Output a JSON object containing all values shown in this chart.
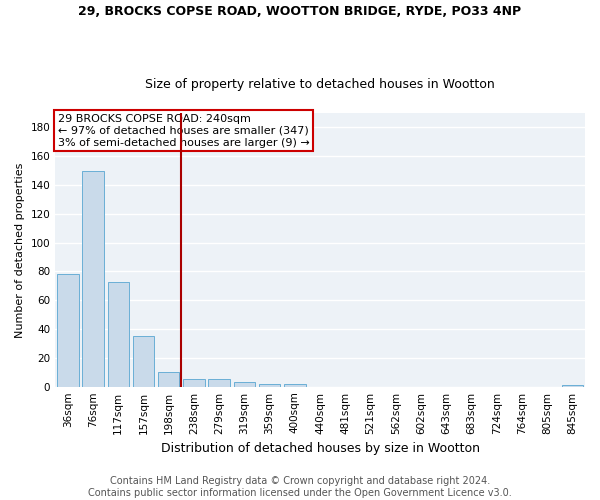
{
  "title1": "29, BROCKS COPSE ROAD, WOOTTON BRIDGE, RYDE, PO33 4NP",
  "title2": "Size of property relative to detached houses in Wootton",
  "xlabel": "Distribution of detached houses by size in Wootton",
  "ylabel": "Number of detached properties",
  "footer1": "Contains HM Land Registry data © Crown copyright and database right 2024.",
  "footer2": "Contains public sector information licensed under the Open Government Licence v3.0.",
  "annotation_line1": "29 BROCKS COPSE ROAD: 240sqm",
  "annotation_line2": "← 97% of detached houses are smaller (347)",
  "annotation_line3": "3% of semi-detached houses are larger (9) →",
  "bar_color": "#c9daea",
  "bar_edge_color": "#6aafd6",
  "vline_color": "#aa0000",
  "annotation_box_color": "#cc0000",
  "background_color": "#edf2f7",
  "grid_color": "#ffffff",
  "categories": [
    "36sqm",
    "76sqm",
    "117sqm",
    "157sqm",
    "198sqm",
    "238sqm",
    "279sqm",
    "319sqm",
    "359sqm",
    "400sqm",
    "440sqm",
    "481sqm",
    "521sqm",
    "562sqm",
    "602sqm",
    "643sqm",
    "683sqm",
    "724sqm",
    "764sqm",
    "805sqm",
    "845sqm"
  ],
  "values": [
    78,
    150,
    73,
    35,
    10,
    5,
    5,
    3,
    2,
    2,
    0,
    0,
    0,
    0,
    0,
    0,
    0,
    0,
    0,
    0,
    1
  ],
  "ylim": [
    0,
    190
  ],
  "yticks": [
    0,
    20,
    40,
    60,
    80,
    100,
    120,
    140,
    160,
    180
  ],
  "vline_x_index": 4.5,
  "title1_fontsize": 9,
  "title2_fontsize": 9,
  "xlabel_fontsize": 9,
  "ylabel_fontsize": 8,
  "footer_fontsize": 7,
  "tick_fontsize": 7.5,
  "annotation_fontsize": 8
}
